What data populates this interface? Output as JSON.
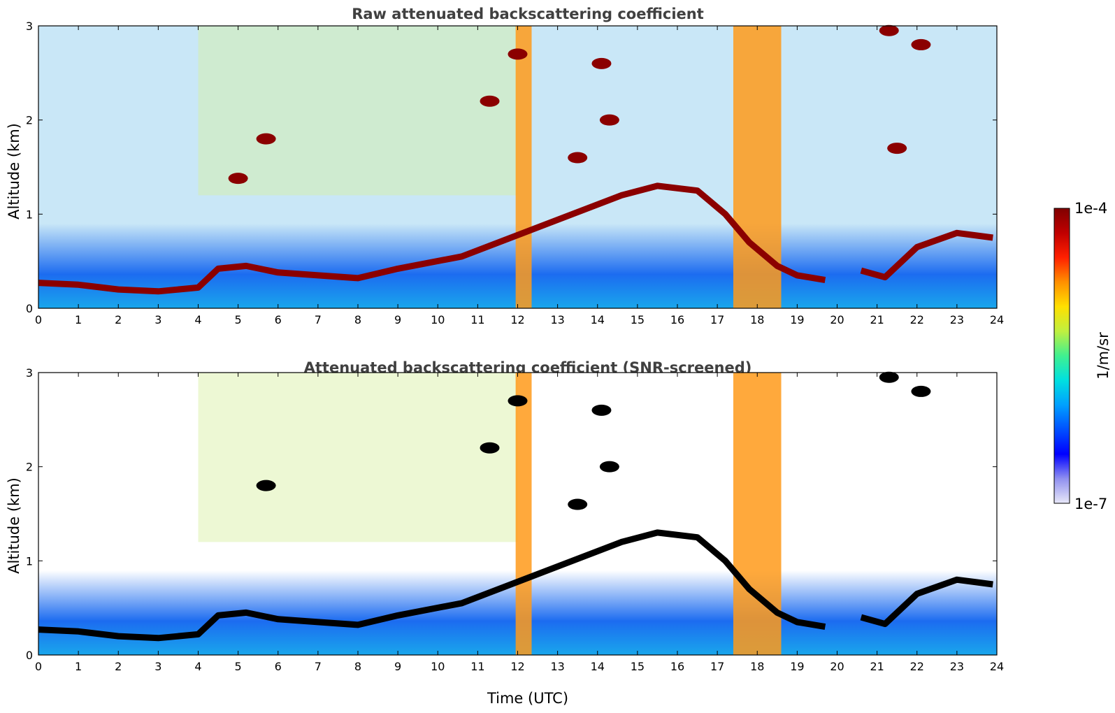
{
  "chart_data": [
    {
      "type": "heatmap",
      "title": "Raw attenuated backscattering coefficient",
      "ylabel": "Altitude (km)",
      "xlabel": "",
      "xlim": [
        0,
        24
      ],
      "ylim": [
        0,
        3
      ],
      "x_ticks": [
        "0",
        "1",
        "2",
        "3",
        "4",
        "5",
        "6",
        "7",
        "8",
        "9",
        "10",
        "11",
        "12",
        "13",
        "14",
        "15",
        "16",
        "17",
        "18",
        "19",
        "20",
        "21",
        "22",
        "23",
        "24"
      ],
      "y_ticks": [
        "0",
        "1",
        "2",
        "3"
      ],
      "background_top": "#c9e7f7",
      "layer_color": "#8b0000",
      "layer": [
        [
          0.0,
          0.27
        ],
        [
          1.0,
          0.25
        ],
        [
          2.0,
          0.2
        ],
        [
          3.0,
          0.18
        ],
        [
          4.0,
          0.22
        ],
        [
          4.5,
          0.42
        ],
        [
          5.2,
          0.45
        ],
        [
          6.0,
          0.38
        ],
        [
          7.0,
          0.35
        ],
        [
          8.0,
          0.32
        ],
        [
          9.0,
          0.42
        ],
        [
          10.6,
          0.55
        ],
        [
          14.6,
          1.2
        ],
        [
          15.5,
          1.3
        ],
        [
          16.5,
          1.25
        ],
        [
          17.2,
          1.0
        ],
        [
          17.8,
          0.7
        ],
        [
          18.5,
          0.45
        ],
        [
          19.0,
          0.35
        ],
        [
          19.7,
          0.3
        ]
      ],
      "layer2": [
        [
          20.6,
          0.4
        ],
        [
          21.2,
          0.33
        ],
        [
          22.0,
          0.65
        ],
        [
          23.0,
          0.8
        ],
        [
          23.9,
          0.75
        ]
      ],
      "clouds": [
        [
          5.7,
          1.8
        ],
        [
          5.0,
          1.38
        ],
        [
          11.3,
          2.2
        ],
        [
          12.0,
          2.7
        ],
        [
          13.5,
          1.6
        ],
        [
          14.3,
          2.0
        ],
        [
          14.1,
          2.6
        ],
        [
          22.1,
          2.8
        ],
        [
          21.5,
          1.7
        ],
        [
          21.3,
          2.95
        ]
      ],
      "rain": [
        [
          11.95,
          12.35
        ],
        [
          17.4,
          18.6
        ]
      ]
    },
    {
      "type": "heatmap",
      "title": "Attenuated backscattering coefficient (SNR-screened)",
      "ylabel": "Altitude (km)",
      "xlabel": "Time (UTC)",
      "xlim": [
        0,
        24
      ],
      "ylim": [
        0,
        3
      ],
      "x_ticks": [
        "0",
        "1",
        "2",
        "3",
        "4",
        "5",
        "6",
        "7",
        "8",
        "9",
        "10",
        "11",
        "12",
        "13",
        "14",
        "15",
        "16",
        "17",
        "18",
        "19",
        "20",
        "21",
        "22",
        "23",
        "24"
      ],
      "y_ticks": [
        "0",
        "1",
        "2",
        "3"
      ],
      "background_top": "#ffffff",
      "layer_color": "#000000",
      "layer": [
        [
          0.0,
          0.27
        ],
        [
          1.0,
          0.25
        ],
        [
          2.0,
          0.2
        ],
        [
          3.0,
          0.18
        ],
        [
          4.0,
          0.22
        ],
        [
          4.5,
          0.42
        ],
        [
          5.2,
          0.45
        ],
        [
          6.0,
          0.38
        ],
        [
          7.0,
          0.35
        ],
        [
          8.0,
          0.32
        ],
        [
          9.0,
          0.42
        ],
        [
          10.6,
          0.55
        ],
        [
          14.6,
          1.2
        ],
        [
          15.5,
          1.3
        ],
        [
          16.5,
          1.25
        ],
        [
          17.2,
          1.0
        ],
        [
          17.8,
          0.7
        ],
        [
          18.5,
          0.45
        ],
        [
          19.0,
          0.35
        ],
        [
          19.7,
          0.3
        ]
      ],
      "layer2": [
        [
          20.6,
          0.4
        ],
        [
          21.2,
          0.33
        ],
        [
          22.0,
          0.65
        ],
        [
          23.0,
          0.8
        ],
        [
          23.9,
          0.75
        ]
      ],
      "clouds": [
        [
          5.7,
          1.8
        ],
        [
          11.3,
          2.2
        ],
        [
          12.0,
          2.7
        ],
        [
          13.5,
          1.6
        ],
        [
          14.3,
          2.0
        ],
        [
          14.1,
          2.6
        ],
        [
          22.1,
          2.8
        ],
        [
          21.3,
          2.95
        ]
      ],
      "rain": [
        [
          11.95,
          12.35
        ],
        [
          17.4,
          18.6
        ]
      ]
    }
  ],
  "colorbar": {
    "label": "1/m/sr",
    "max_label": "1e-4",
    "min_label": "1e-7",
    "colors": [
      "#e8e8f8",
      "#9090f0",
      "#0000ff",
      "#0050ff",
      "#00a0ff",
      "#00e0e0",
      "#40f090",
      "#c0f040",
      "#ffe000",
      "#ff9000",
      "#ff2000",
      "#c00000",
      "#800000"
    ]
  }
}
